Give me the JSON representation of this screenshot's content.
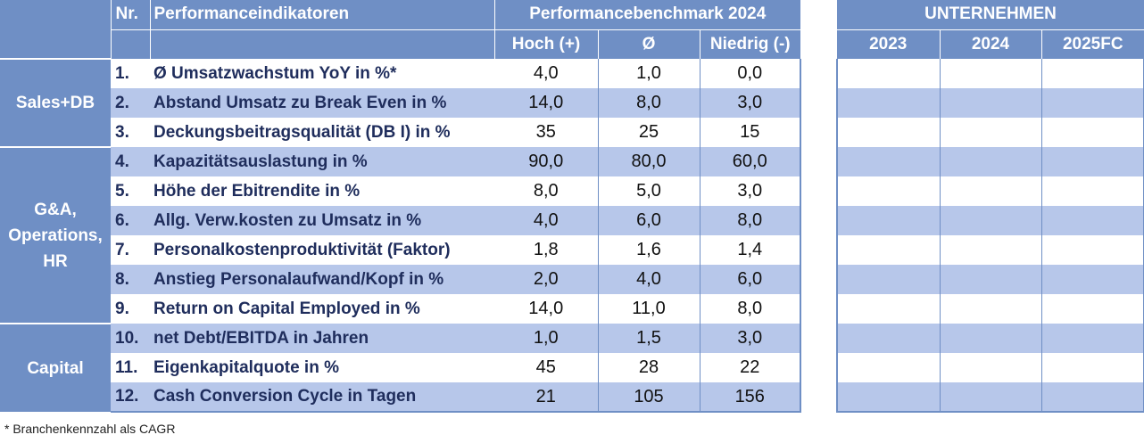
{
  "header": {
    "nr": "Nr.",
    "kpi": "Performanceindikatoren",
    "benchmark": "Performancebenchmark 2024",
    "high": "Hoch (+)",
    "avg": "Ø",
    "low": "Niedrig (-)",
    "company": "UNTERNEHMEN",
    "years": [
      "2023",
      "2024",
      "2025FC"
    ]
  },
  "groups": [
    {
      "label_lines": [
        "Sales+DB"
      ]
    },
    {
      "label_lines": [
        "G&A,",
        "Operations,",
        "HR"
      ]
    },
    {
      "label_lines": [
        "Capital"
      ]
    }
  ],
  "rows": [
    {
      "nr": "1.",
      "kpi": "Ø Umsatzwachstum YoY in %*",
      "high": "4,0",
      "avg": "1,0",
      "low": "0,0"
    },
    {
      "nr": "2.",
      "kpi": "Abstand Umsatz zu Break Even in %",
      "high": "14,0",
      "avg": "8,0",
      "low": "3,0"
    },
    {
      "nr": "3.",
      "kpi": "Deckungsbeitragsqualität (DB I) in %",
      "high": "35",
      "avg": "25",
      "low": "15"
    },
    {
      "nr": "4.",
      "kpi": "Kapazitätsauslastung in %",
      "high": "90,0",
      "avg": "80,0",
      "low": "60,0"
    },
    {
      "nr": "5.",
      "kpi": "Höhe der Ebitrendite in %",
      "high": "8,0",
      "avg": "5,0",
      "low": "3,0"
    },
    {
      "nr": "6.",
      "kpi": "Allg. Verw.kosten zu Umsatz in %",
      "high": "4,0",
      "avg": "6,0",
      "low": "8,0"
    },
    {
      "nr": "7.",
      "kpi": "Personalkostenproduktivität (Faktor)",
      "high": "1,8",
      "avg": "1,6",
      "low": "1,4"
    },
    {
      "nr": "8.",
      "kpi": "Anstieg Personalaufwand/Kopf in %",
      "high": "2,0",
      "avg": "4,0",
      "low": "6,0"
    },
    {
      "nr": "9.",
      "kpi": "Return on Capital Employed in %",
      "high": "14,0",
      "avg": "11,0",
      "low": "8,0"
    },
    {
      "nr": "10.",
      "kpi": "net Debt/EBITDA in Jahren",
      "high": "1,0",
      "avg": "1,5",
      "low": "3,0"
    },
    {
      "nr": "11.",
      "kpi": "Eigenkapitalquote in %",
      "high": "45",
      "avg": "28",
      "low": "22"
    },
    {
      "nr": "12.",
      "kpi": "Cash Conversion Cycle in Tagen",
      "high": "21",
      "avg": "105",
      "low": "156"
    }
  ],
  "footnote": "* Branchenkennzahl als CAGR"
}
